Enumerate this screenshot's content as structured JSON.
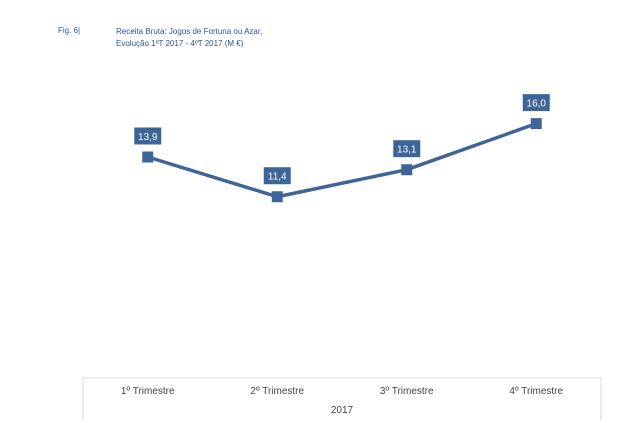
{
  "figure": {
    "label": "Fig. 6|",
    "title_line1": "Receita Bruta: Jogos de Fortuna ou Azar,",
    "title_line2": "Evolução 1ºT 2017 - 4ºT 2017 (M €)"
  },
  "chart_data": {
    "type": "line",
    "title": "Receita Bruta: Jogos de Fortuna ou Azar, Evolução 1ºT 2017 - 4ºT 2017 (M €)",
    "categories": [
      "1º Trimestre",
      "2º Trimestre",
      "3º Trimestre",
      "4º Trimestre"
    ],
    "group_label": "2017",
    "series": [
      {
        "values": [
          13.9,
          11.4,
          13.1,
          16.0
        ],
        "labels": [
          "13,9",
          "11,4",
          "13,1",
          "16,0"
        ]
      }
    ],
    "ylim": [
      0,
      20
    ],
    "grid": false,
    "legend": "none",
    "colors": {
      "line": "#3e6597",
      "label_bg": "#3e6597",
      "label_text": "#ffffff",
      "axis": "#d9d9d9"
    }
  }
}
